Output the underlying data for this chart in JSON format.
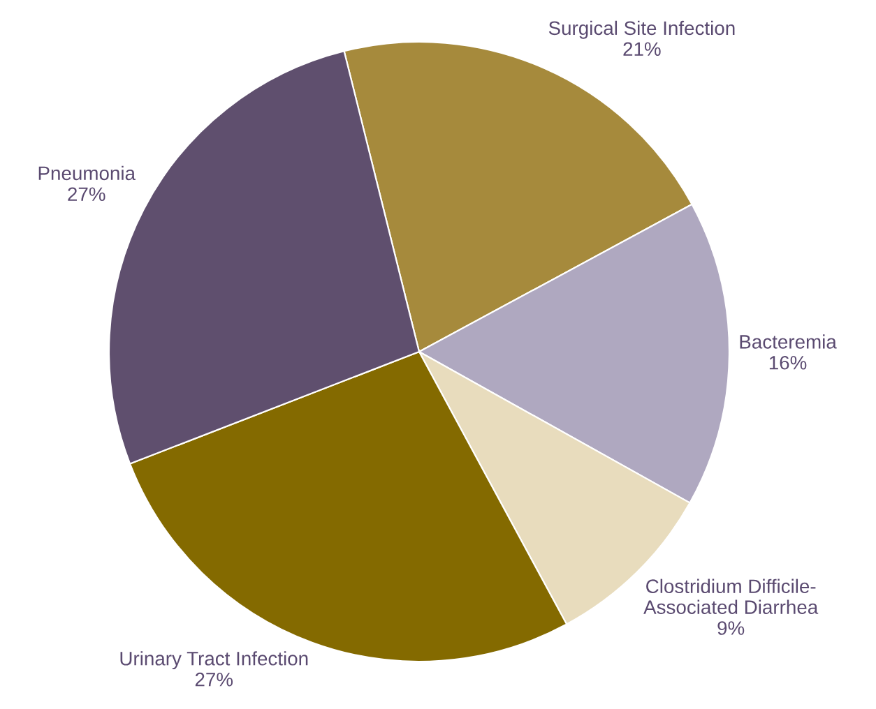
{
  "chart_data": {
    "type": "pie",
    "categories": [
      "Surgical Site Infection",
      "Bacteremia",
      "Clostridium Difficile-\nAssociated Diarrhea",
      "Urinary Tract Infection",
      "Pneumonia"
    ],
    "values": [
      21,
      16,
      9,
      27,
      27
    ],
    "value_labels": [
      "21%",
      "16%",
      "9%",
      "27%",
      "27%"
    ],
    "colors": [
      "#a68a3c",
      "#afa8c0",
      "#e8dcbd",
      "#846a00",
      "#5f4f6e"
    ]
  }
}
